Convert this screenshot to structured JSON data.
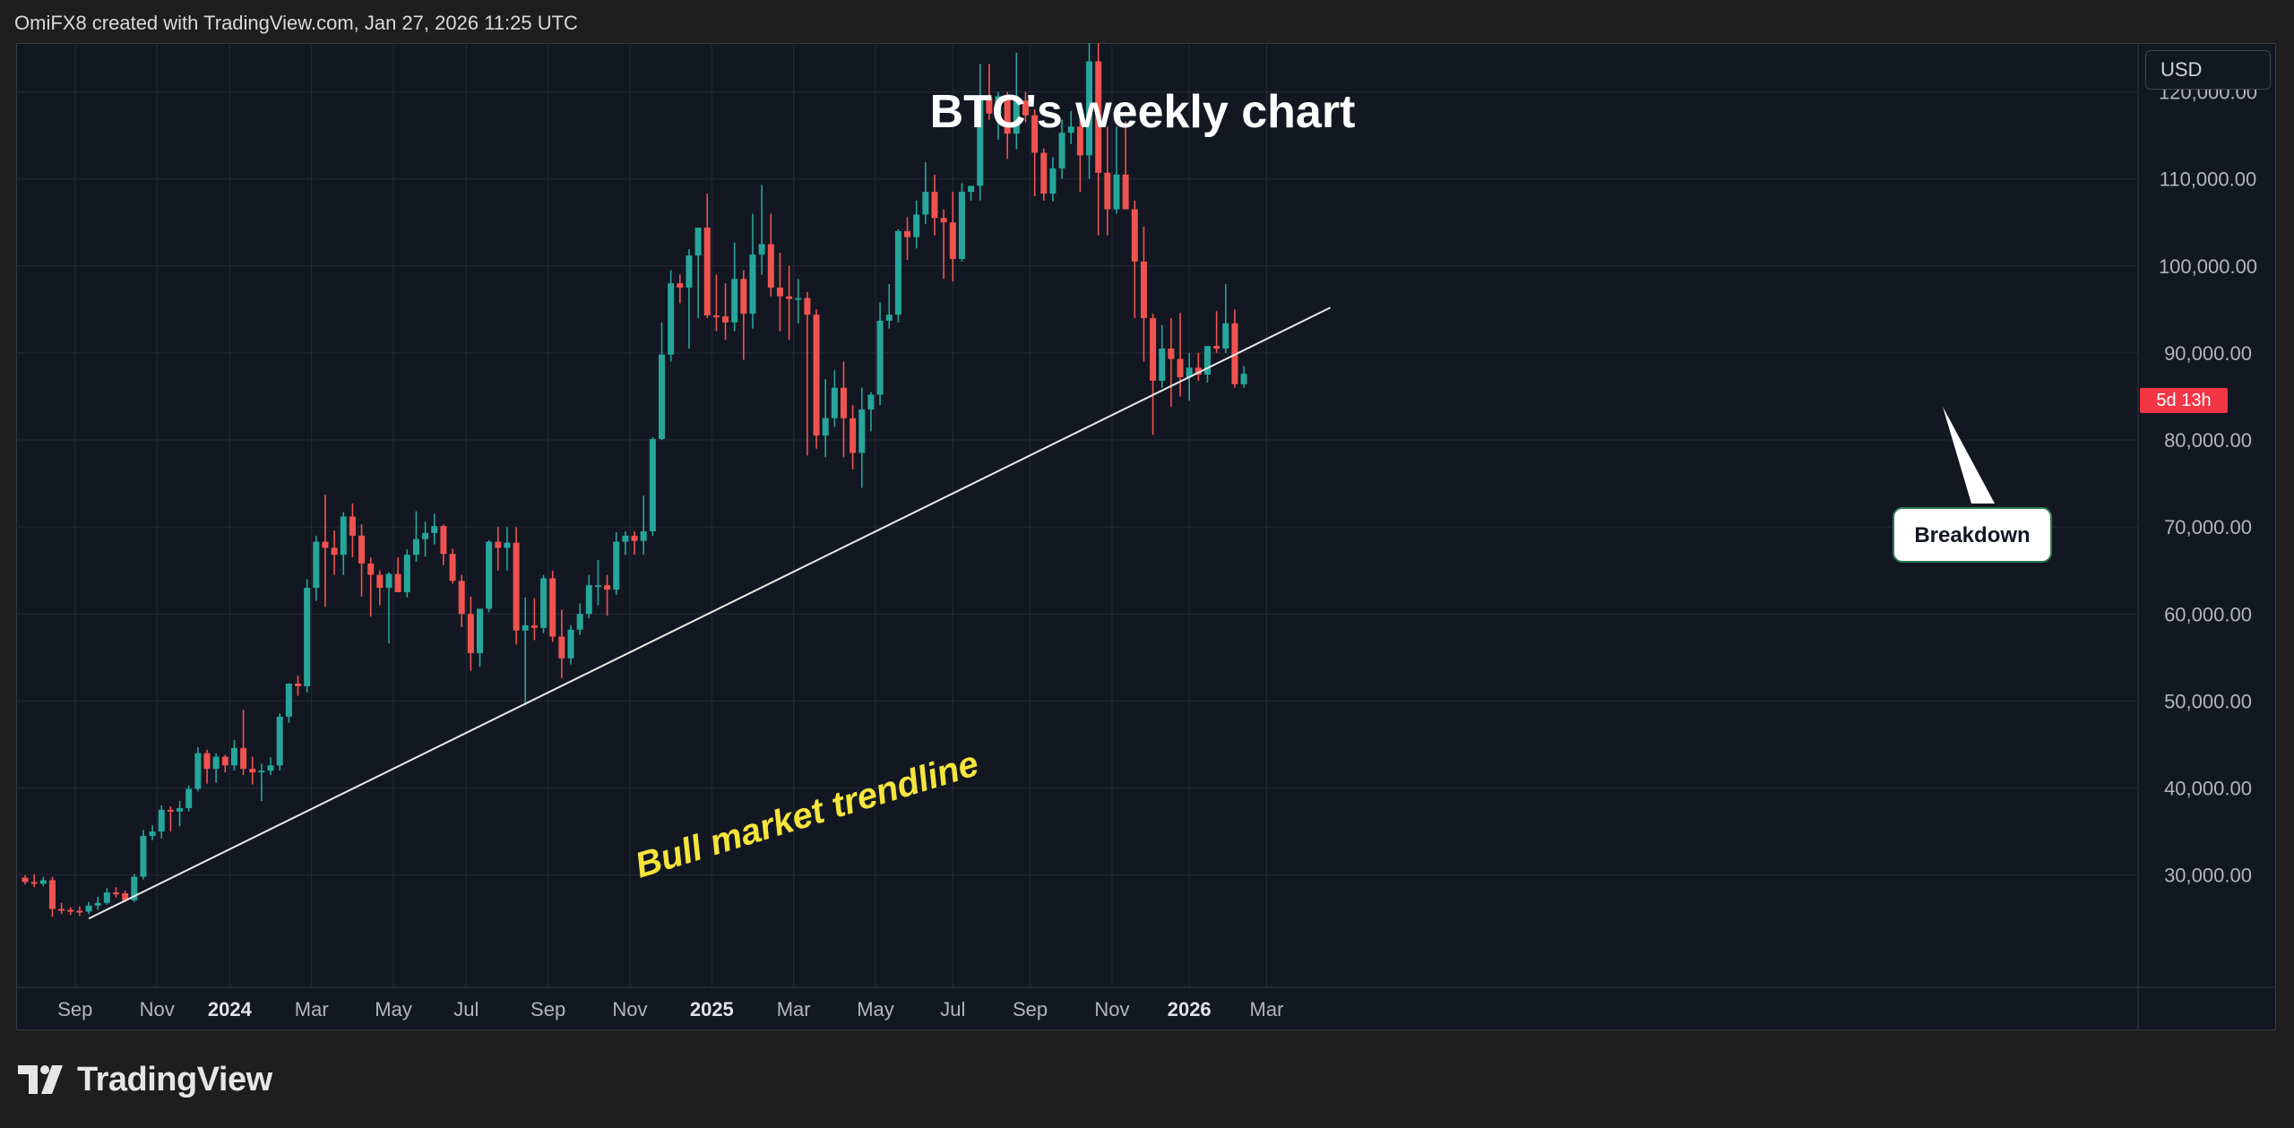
{
  "header": {
    "credit": "OmiFX8 created with TradingView.com, Jan 27, 2026 11:25 UTC"
  },
  "currency_button": "USD",
  "countdown_badge": "5d 13h",
  "brand": {
    "name": "TradingView",
    "logo_icon": "tradingview-logo-icon"
  },
  "colors": {
    "up": "#26a69a",
    "down": "#ef5350",
    "background": "#131722",
    "grid": "#242a36",
    "annotation": "#f5e53b"
  },
  "chart_data": {
    "type": "candlestick",
    "title": "BTC's weekly chart",
    "timeframe": "weekly",
    "ylim": [
      22000,
      127000
    ],
    "y_ticks": [
      30000,
      40000,
      50000,
      60000,
      70000,
      80000,
      90000,
      100000,
      110000,
      120000
    ],
    "y_tick_labels": [
      "30,000.00",
      "40,000.00",
      "50,000.00",
      "60,000.00",
      "70,000.00",
      "80,000.00",
      "90,000.00",
      "100,000.00",
      "110,000.00",
      "120,000.00"
    ],
    "x_tick_labels": [
      "Sep",
      "Nov",
      "2024",
      "Mar",
      "May",
      "Jul",
      "Sep",
      "Nov",
      "2025",
      "Mar",
      "May",
      "Jul",
      "Sep",
      "Nov",
      "2026",
      "Mar"
    ],
    "x_tick_bold": [
      false,
      false,
      true,
      false,
      false,
      false,
      false,
      false,
      true,
      false,
      false,
      false,
      false,
      false,
      true,
      false
    ],
    "x_tick_week_index": [
      5.5,
      14.5,
      22.5,
      31.5,
      40.5,
      48.5,
      57.5,
      66.5,
      75.5,
      84.5,
      93.5,
      102,
      110.5,
      119.5,
      128,
      136.5
    ],
    "candles": [
      {
        "o": 29700,
        "h": 30000,
        "l": 28900,
        "c": 29200
      },
      {
        "o": 29200,
        "h": 30100,
        "l": 28600,
        "c": 29000
      },
      {
        "o": 29000,
        "h": 29800,
        "l": 28700,
        "c": 29400
      },
      {
        "o": 29400,
        "h": 29800,
        "l": 25200,
        "c": 26100
      },
      {
        "o": 26100,
        "h": 26800,
        "l": 25500,
        "c": 26000
      },
      {
        "o": 26000,
        "h": 26300,
        "l": 25400,
        "c": 25900
      },
      {
        "o": 25900,
        "h": 26400,
        "l": 25300,
        "c": 25800
      },
      {
        "o": 25800,
        "h": 26900,
        "l": 25500,
        "c": 26500
      },
      {
        "o": 26500,
        "h": 27500,
        "l": 26000,
        "c": 26800
      },
      {
        "o": 26800,
        "h": 28500,
        "l": 26600,
        "c": 28000
      },
      {
        "o": 28000,
        "h": 28600,
        "l": 27400,
        "c": 27900
      },
      {
        "o": 27900,
        "h": 28200,
        "l": 26900,
        "c": 27100
      },
      {
        "o": 27100,
        "h": 30100,
        "l": 26900,
        "c": 29800
      },
      {
        "o": 29800,
        "h": 35200,
        "l": 29500,
        "c": 34500
      },
      {
        "o": 34500,
        "h": 35700,
        "l": 34000,
        "c": 35000
      },
      {
        "o": 35000,
        "h": 38000,
        "l": 34200,
        "c": 37500
      },
      {
        "o": 37500,
        "h": 37900,
        "l": 35000,
        "c": 37300
      },
      {
        "o": 37300,
        "h": 38500,
        "l": 35600,
        "c": 37700
      },
      {
        "o": 37700,
        "h": 40300,
        "l": 37300,
        "c": 39900
      },
      {
        "o": 39900,
        "h": 44700,
        "l": 39600,
        "c": 44000
      },
      {
        "o": 44000,
        "h": 44400,
        "l": 40500,
        "c": 42200
      },
      {
        "o": 42200,
        "h": 44000,
        "l": 40600,
        "c": 43600
      },
      {
        "o": 43600,
        "h": 43800,
        "l": 41800,
        "c": 42600
      },
      {
        "o": 42600,
        "h": 45500,
        "l": 42000,
        "c": 44600
      },
      {
        "o": 44600,
        "h": 49000,
        "l": 41500,
        "c": 42200
      },
      {
        "o": 42200,
        "h": 43600,
        "l": 40400,
        "c": 41800
      },
      {
        "o": 41800,
        "h": 42800,
        "l": 38500,
        "c": 42000
      },
      {
        "o": 42000,
        "h": 43500,
        "l": 41500,
        "c": 42600
      },
      {
        "o": 42600,
        "h": 48600,
        "l": 42000,
        "c": 48200
      },
      {
        "o": 48200,
        "h": 52000,
        "l": 47500,
        "c": 52000
      },
      {
        "o": 52000,
        "h": 52900,
        "l": 50600,
        "c": 51700
      },
      {
        "o": 51700,
        "h": 64000,
        "l": 51000,
        "c": 63000
      },
      {
        "o": 63000,
        "h": 69000,
        "l": 61500,
        "c": 68300
      },
      {
        "o": 68300,
        "h": 73700,
        "l": 60800,
        "c": 67600
      },
      {
        "o": 67600,
        "h": 69600,
        "l": 64500,
        "c": 66800
      },
      {
        "o": 66800,
        "h": 71700,
        "l": 64500,
        "c": 71200
      },
      {
        "o": 71200,
        "h": 72700,
        "l": 66500,
        "c": 69000
      },
      {
        "o": 69000,
        "h": 70300,
        "l": 62000,
        "c": 65800
      },
      {
        "o": 65800,
        "h": 66500,
        "l": 59700,
        "c": 64500
      },
      {
        "o": 64500,
        "h": 65000,
        "l": 61000,
        "c": 63000
      },
      {
        "o": 63000,
        "h": 64800,
        "l": 56600,
        "c": 64600
      },
      {
        "o": 64600,
        "h": 66500,
        "l": 62500,
        "c": 62500
      },
      {
        "o": 62500,
        "h": 67400,
        "l": 61900,
        "c": 66800
      },
      {
        "o": 66800,
        "h": 71800,
        "l": 66000,
        "c": 68600
      },
      {
        "o": 68600,
        "h": 70600,
        "l": 66600,
        "c": 69300
      },
      {
        "o": 69300,
        "h": 71500,
        "l": 68000,
        "c": 70100
      },
      {
        "o": 70100,
        "h": 70300,
        "l": 65600,
        "c": 66900
      },
      {
        "o": 66900,
        "h": 67500,
        "l": 63500,
        "c": 63800
      },
      {
        "o": 63800,
        "h": 64500,
        "l": 58500,
        "c": 60000
      },
      {
        "o": 60000,
        "h": 62000,
        "l": 53500,
        "c": 55500
      },
      {
        "o": 55500,
        "h": 60000,
        "l": 53900,
        "c": 60600
      },
      {
        "o": 60600,
        "h": 68500,
        "l": 60200,
        "c": 68300
      },
      {
        "o": 68300,
        "h": 70000,
        "l": 65000,
        "c": 67600
      },
      {
        "o": 67600,
        "h": 70000,
        "l": 65000,
        "c": 68200
      },
      {
        "o": 68200,
        "h": 70000,
        "l": 56500,
        "c": 58100
      },
      {
        "o": 58100,
        "h": 61900,
        "l": 49500,
        "c": 58700
      },
      {
        "o": 58700,
        "h": 61800,
        "l": 57000,
        "c": 58400
      },
      {
        "o": 58400,
        "h": 64500,
        "l": 57800,
        "c": 64100
      },
      {
        "o": 64100,
        "h": 65000,
        "l": 56800,
        "c": 57400
      },
      {
        "o": 57400,
        "h": 60500,
        "l": 52600,
        "c": 54900
      },
      {
        "o": 54900,
        "h": 58700,
        "l": 54200,
        "c": 58200
      },
      {
        "o": 58200,
        "h": 61200,
        "l": 57600,
        "c": 60000
      },
      {
        "o": 60000,
        "h": 64500,
        "l": 59500,
        "c": 63300
      },
      {
        "o": 63300,
        "h": 66200,
        "l": 61000,
        "c": 63300
      },
      {
        "o": 63300,
        "h": 64500,
        "l": 59800,
        "c": 62800
      },
      {
        "o": 62800,
        "h": 69400,
        "l": 62200,
        "c": 68300
      },
      {
        "o": 68300,
        "h": 69500,
        "l": 66800,
        "c": 69000
      },
      {
        "o": 69000,
        "h": 69500,
        "l": 66800,
        "c": 68400
      },
      {
        "o": 68400,
        "h": 73600,
        "l": 66800,
        "c": 69500
      },
      {
        "o": 69500,
        "h": 80300,
        "l": 69000,
        "c": 80100
      },
      {
        "o": 80100,
        "h": 93500,
        "l": 80000,
        "c": 89800
      },
      {
        "o": 89800,
        "h": 99500,
        "l": 89000,
        "c": 98000
      },
      {
        "o": 98000,
        "h": 99000,
        "l": 95700,
        "c": 97500
      },
      {
        "o": 97500,
        "h": 101900,
        "l": 90500,
        "c": 101200
      },
      {
        "o": 101200,
        "h": 104000,
        "l": 94000,
        "c": 104400
      },
      {
        "o": 104400,
        "h": 108300,
        "l": 94000,
        "c": 94300
      },
      {
        "o": 94300,
        "h": 99000,
        "l": 92500,
        "c": 94200
      },
      {
        "o": 94200,
        "h": 98000,
        "l": 91500,
        "c": 93500
      },
      {
        "o": 93500,
        "h": 102700,
        "l": 92500,
        "c": 98500
      },
      {
        "o": 98500,
        "h": 99500,
        "l": 89200,
        "c": 94500
      },
      {
        "o": 94500,
        "h": 106000,
        "l": 92800,
        "c": 101300
      },
      {
        "o": 101300,
        "h": 109300,
        "l": 99000,
        "c": 102500
      },
      {
        "o": 102500,
        "h": 106000,
        "l": 96500,
        "c": 97500
      },
      {
        "o": 97500,
        "h": 101500,
        "l": 92500,
        "c": 96500
      },
      {
        "o": 96500,
        "h": 100000,
        "l": 91500,
        "c": 96200
      },
      {
        "o": 96200,
        "h": 98500,
        "l": 93400,
        "c": 96300
      },
      {
        "o": 96300,
        "h": 97000,
        "l": 78200,
        "c": 94400
      },
      {
        "o": 94400,
        "h": 95000,
        "l": 79000,
        "c": 80500
      },
      {
        "o": 80500,
        "h": 87000,
        "l": 78000,
        "c": 82500
      },
      {
        "o": 82500,
        "h": 88000,
        "l": 81500,
        "c": 86000
      },
      {
        "o": 86000,
        "h": 89000,
        "l": 78000,
        "c": 82500
      },
      {
        "o": 82500,
        "h": 84000,
        "l": 76600,
        "c": 78500
      },
      {
        "o": 78500,
        "h": 86000,
        "l": 74500,
        "c": 83500
      },
      {
        "o": 83500,
        "h": 85500,
        "l": 81000,
        "c": 85200
      },
      {
        "o": 85200,
        "h": 95800,
        "l": 84000,
        "c": 93700
      },
      {
        "o": 93700,
        "h": 97900,
        "l": 92800,
        "c": 94400
      },
      {
        "o": 94400,
        "h": 104200,
        "l": 93500,
        "c": 104000
      },
      {
        "o": 104000,
        "h": 105600,
        "l": 100700,
        "c": 103300
      },
      {
        "o": 103300,
        "h": 107500,
        "l": 102000,
        "c": 105900
      },
      {
        "o": 105900,
        "h": 111900,
        "l": 104800,
        "c": 108500
      },
      {
        "o": 108500,
        "h": 110500,
        "l": 103500,
        "c": 105500
      },
      {
        "o": 105500,
        "h": 106500,
        "l": 98500,
        "c": 105000
      },
      {
        "o": 105000,
        "h": 108500,
        "l": 98200,
        "c": 100800
      },
      {
        "o": 100800,
        "h": 109500,
        "l": 100500,
        "c": 108500
      },
      {
        "o": 108500,
        "h": 109000,
        "l": 107500,
        "c": 109200
      },
      {
        "o": 109200,
        "h": 123200,
        "l": 107500,
        "c": 119300
      },
      {
        "o": 119300,
        "h": 123200,
        "l": 116800,
        "c": 117500
      },
      {
        "o": 117500,
        "h": 120000,
        "l": 114500,
        "c": 119500
      },
      {
        "o": 119500,
        "h": 120000,
        "l": 112300,
        "c": 115200
      },
      {
        "o": 115200,
        "h": 124500,
        "l": 113400,
        "c": 119000
      },
      {
        "o": 119000,
        "h": 120000,
        "l": 116500,
        "c": 117300
      },
      {
        "o": 117300,
        "h": 118000,
        "l": 108000,
        "c": 113000
      },
      {
        "o": 113000,
        "h": 113500,
        "l": 107500,
        "c": 108300
      },
      {
        "o": 108300,
        "h": 112500,
        "l": 107400,
        "c": 111200
      },
      {
        "o": 111200,
        "h": 116800,
        "l": 110000,
        "c": 115300
      },
      {
        "o": 115300,
        "h": 117800,
        "l": 114000,
        "c": 116000
      },
      {
        "o": 116000,
        "h": 118500,
        "l": 108500,
        "c": 112700
      },
      {
        "o": 112700,
        "h": 126300,
        "l": 110000,
        "c": 123500
      },
      {
        "o": 123500,
        "h": 126200,
        "l": 103500,
        "c": 110700
      },
      {
        "o": 110700,
        "h": 116000,
        "l": 103500,
        "c": 106500
      },
      {
        "o": 106500,
        "h": 116000,
        "l": 106000,
        "c": 110500
      },
      {
        "o": 110500,
        "h": 116600,
        "l": 106500,
        "c": 106500
      },
      {
        "o": 106500,
        "h": 107500,
        "l": 94000,
        "c": 100500
      },
      {
        "o": 100500,
        "h": 104500,
        "l": 89000,
        "c": 94000
      },
      {
        "o": 94000,
        "h": 94500,
        "l": 80600,
        "c": 86800
      },
      {
        "o": 86800,
        "h": 93200,
        "l": 86000,
        "c": 90500
      },
      {
        "o": 90500,
        "h": 94000,
        "l": 83800,
        "c": 89300
      },
      {
        "o": 89300,
        "h": 94600,
        "l": 85000,
        "c": 87200
      },
      {
        "o": 87200,
        "h": 90000,
        "l": 84500,
        "c": 88300
      },
      {
        "o": 88300,
        "h": 90000,
        "l": 86800,
        "c": 87500
      },
      {
        "o": 87500,
        "h": 89800,
        "l": 86600,
        "c": 90800
      },
      {
        "o": 90800,
        "h": 94800,
        "l": 90000,
        "c": 90500
      },
      {
        "o": 90500,
        "h": 97900,
        "l": 90000,
        "c": 93400
      },
      {
        "o": 93400,
        "h": 95000,
        "l": 86000,
        "c": 86400
      },
      {
        "o": 86400,
        "h": 88500,
        "l": 86000,
        "c": 87600
      }
    ],
    "trendline": {
      "from": {
        "week_index": 7,
        "price": 25000
      },
      "to": {
        "week_index": 143.5,
        "price": 95200
      }
    },
    "annotations": [
      {
        "text": "Bull market trendline",
        "color": "#f5e53b"
      },
      {
        "text": "Breakdown",
        "points_to": {
          "week_index": 131,
          "price": 86200
        }
      }
    ]
  }
}
